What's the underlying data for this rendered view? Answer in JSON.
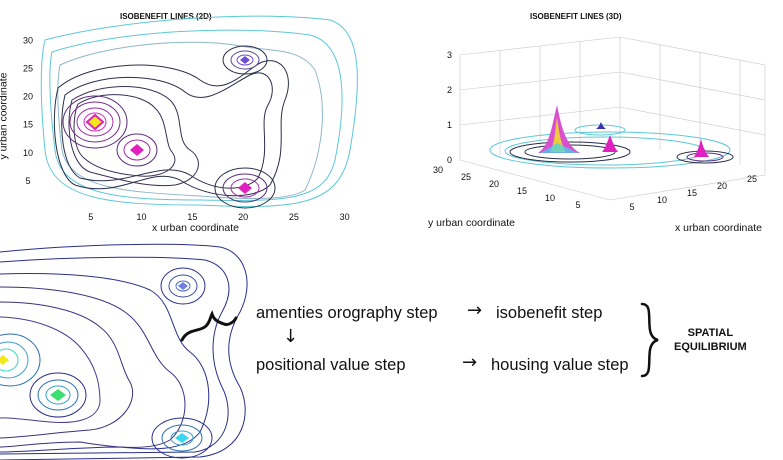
{
  "panel_2d": {
    "title": "ISOBENEFIT LINES (2D)",
    "xlabel": "x urban coordinate",
    "ylabel": "y urban coordinate",
    "x_ticks": [
      "5",
      "10",
      "15",
      "20",
      "25",
      "30"
    ],
    "y_ticks": [
      "5",
      "10",
      "15",
      "20",
      "25",
      "30"
    ]
  },
  "panel_3d": {
    "title": "ISOBENEFIT LINES (3D)",
    "xlabel": "x urban coordinate",
    "ylabel": "y urban coordinate",
    "z_ticks": [
      "0",
      "1",
      "2",
      "3"
    ],
    "y_ticks": [
      "30",
      "25",
      "20",
      "15",
      "10",
      "5"
    ],
    "x_ticks": [
      "5",
      "10",
      "15",
      "20",
      "25"
    ]
  },
  "flow": {
    "step1": "amenties orography step",
    "step2": "isobenefit step",
    "step3": "positional value step",
    "step4": "housing value step",
    "result_line1": "SPATIAL",
    "result_line2": "EQUILIBRIUM",
    "arrow_right": "→",
    "arrow_down": "↓"
  },
  "colors": {
    "outer_contour": "#5ec8d6",
    "inner_contour": "#232a3a",
    "peak_magenta": "#e21fbf",
    "peak_yellow": "#f2e81a",
    "peak_purple": "#6f4fd0",
    "peak_cyan": "#3ad7f0",
    "peak_green": "#3de070"
  }
}
